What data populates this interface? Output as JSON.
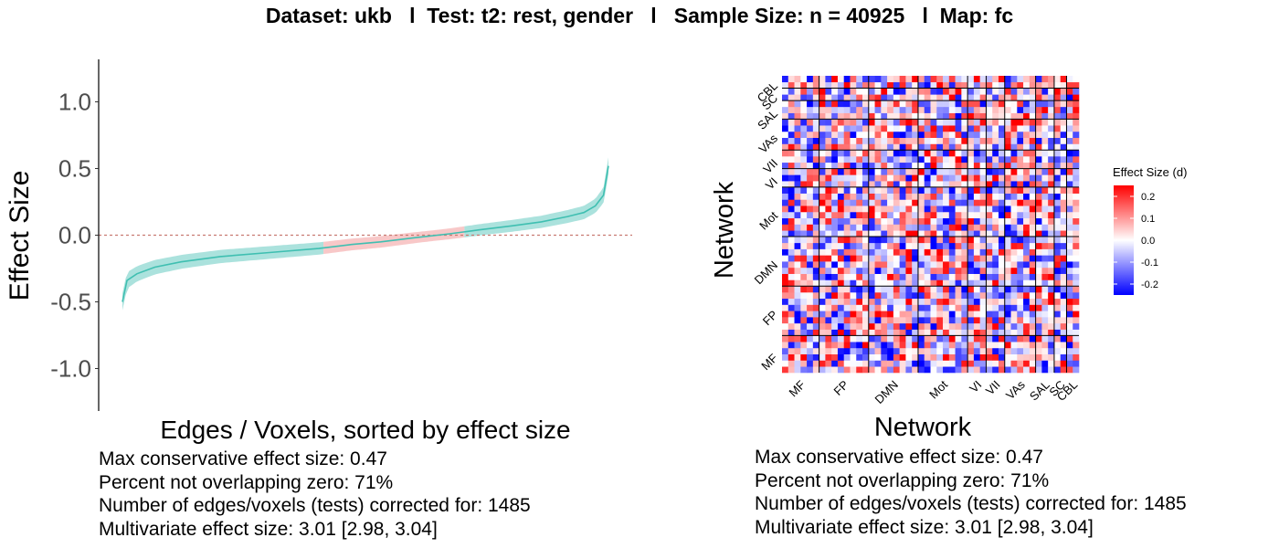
{
  "title": {
    "dataset_label": "Dataset: ukb",
    "test_label": "Test: t2: rest, gender",
    "sample_label": "Sample Size: n = 40925",
    "map_label": "Map: fc",
    "separator": "l"
  },
  "colors": {
    "ci_nonzero": "#8fd8d2",
    "ci_overlap_zero": "#f5b5b5",
    "line": "#3fbfb1",
    "zero_line": "#c87a72",
    "scale_low": "#0000ff",
    "scale_mid": "#ffffff",
    "scale_high": "#ff0000",
    "block_line": "#000000"
  },
  "chart_data": [
    {
      "type": "line",
      "title": "",
      "xlabel": "Edges / Voxels, sorted by effect size",
      "ylabel": "Effect Size",
      "ylim": [
        -1.3,
        1.3
      ],
      "yticks": [
        -1.0,
        -0.5,
        0.0,
        0.5,
        1.0
      ],
      "ytick_labels": [
        "-1.0",
        "-0.5",
        "0.0",
        "0.5",
        "1.0"
      ],
      "x_range": [
        1,
        1485
      ],
      "reference_line": 0,
      "ci_halfwidth_approx": 0.04,
      "series": [
        {
          "points": [
            [
              1,
              -0.5
            ],
            [
              15,
              -0.34
            ],
            [
              45,
              -0.29
            ],
            [
              100,
              -0.24
            ],
            [
              180,
              -0.2
            ],
            [
              300,
              -0.16
            ],
            [
              450,
              -0.13
            ],
            [
              600,
              -0.1
            ],
            [
              700,
              -0.07
            ],
            [
              790,
              -0.05
            ],
            [
              890,
              -0.02
            ],
            [
              1000,
              0.01
            ],
            [
              1090,
              0.04
            ],
            [
              1190,
              0.07
            ],
            [
              1280,
              0.1
            ],
            [
              1360,
              0.14
            ],
            [
              1410,
              0.17
            ],
            [
              1445,
              0.22
            ],
            [
              1470,
              0.3
            ],
            [
              1485,
              0.52
            ]
          ]
        }
      ],
      "nonoverlap_zero_ranges": [
        [
          1,
          615
        ],
        [
          1045,
          1485
        ]
      ],
      "overlap_zero_range": [
        615,
        1045
      ]
    },
    {
      "type": "heatmap",
      "title": "",
      "xlabel": "Network",
      "ylabel": "Network",
      "networks": [
        "MF",
        "FP",
        "DMN",
        "Mot",
        "VI",
        "VII",
        "VAs",
        "SAL",
        "SC",
        "CBL"
      ],
      "network_sizes": [
        6,
        8,
        8,
        8,
        3,
        3,
        5,
        3,
        2,
        2
      ],
      "legend": {
        "title": "Effect Size (d)",
        "ticks": [
          -0.2,
          -0.1,
          0.0,
          0.1,
          0.2
        ],
        "tick_labels": [
          "-0.2",
          "-0.1",
          "0.0",
          "0.1",
          "0.2"
        ],
        "range": [
          -0.25,
          0.25
        ],
        "position": "right"
      },
      "matrix_note": "approx. 48 x 48 node-by-node effect size matrix (values not individually labeled)"
    }
  ],
  "stats_left": {
    "max_effect": "Max conservative effect size: 0.47",
    "percent_nonzero": "Percent not overlapping zero: 71%",
    "num_tests": "Number of edges/voxels (tests) corrected for: 1485",
    "multivariate": "Multivariate effect size: 3.01 [2.98, 3.04]"
  },
  "stats_right": {
    "max_effect": "Max conservative effect size: 0.47",
    "percent_nonzero": "Percent not overlapping zero: 71%",
    "num_tests": "Number of edges/voxels (tests) corrected for: 1485",
    "multivariate": "Multivariate effect size: 3.01 [2.98, 3.04]"
  }
}
